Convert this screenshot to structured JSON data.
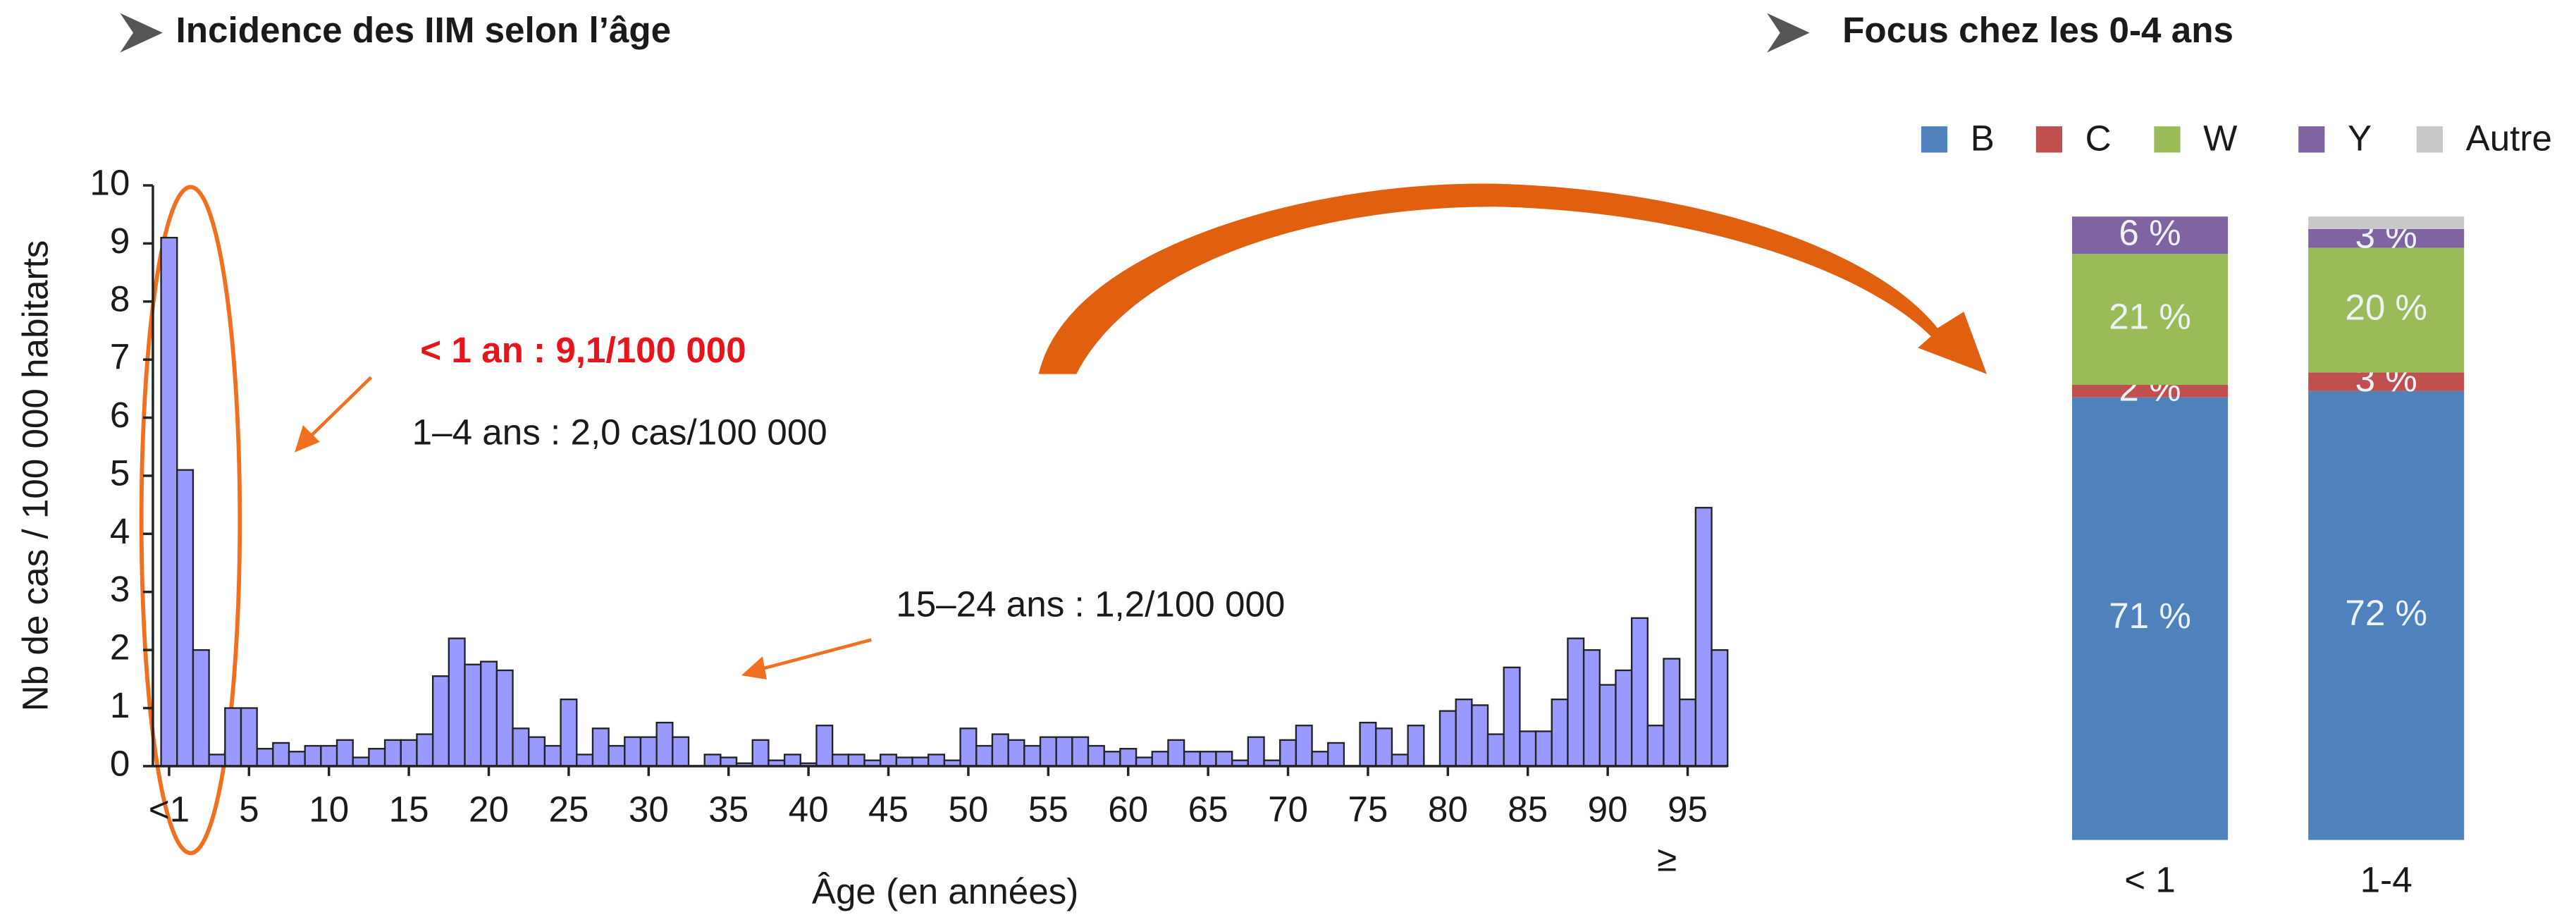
{
  "chart_data": [
    {
      "type": "bar",
      "title": "Incidence des IIM selon l’âge",
      "color": "#9999ff",
      "xlabel": "Âge (en années)",
      "ylabel": "Nb de cas / 100 000 habitarts",
      "categories": [
        "<1",
        null,
        null,
        null,
        null,
        "5",
        null,
        null,
        null,
        null,
        "10",
        null,
        null,
        null,
        null,
        "15",
        null,
        null,
        null,
        null,
        "20",
        null,
        null,
        null,
        null,
        "25",
        null,
        null,
        null,
        null,
        "30",
        null,
        null,
        null,
        null,
        "35",
        null,
        null,
        null,
        null,
        "40",
        null,
        null,
        null,
        null,
        "45",
        null,
        null,
        null,
        null,
        "50",
        null,
        null,
        null,
        null,
        "55",
        null,
        null,
        null,
        null,
        "60",
        null,
        null,
        null,
        null,
        "65",
        null,
        null,
        null,
        null,
        "70",
        null,
        null,
        null,
        null,
        "75",
        null,
        null,
        null,
        null,
        "80",
        null,
        null,
        null,
        null,
        "85",
        null,
        null,
        null,
        null,
        "90",
        null,
        null,
        null,
        null,
        "95",
        null,
        null
      ],
      "values": [
        9.1,
        5.1,
        2.0,
        0.2,
        1.0,
        1.0,
        0.3,
        0.4,
        0.25,
        0.35,
        0.35,
        0.45,
        0.15,
        0.3,
        0.45,
        0.45,
        0.55,
        1.55,
        2.2,
        1.75,
        1.8,
        1.65,
        0.65,
        0.5,
        0.35,
        1.15,
        0.2,
        0.65,
        0.35,
        0.5,
        0.5,
        0.75,
        0.5,
        0,
        0.2,
        0.15,
        0.05,
        0.45,
        0.1,
        0.2,
        0.05,
        0.7,
        0.2,
        0.2,
        0.1,
        0.2,
        0.15,
        0.15,
        0.2,
        0.1,
        0.65,
        0.35,
        0.55,
        0.45,
        0.35,
        0.5,
        0.5,
        0.5,
        0.35,
        0.25,
        0.3,
        0.15,
        0.25,
        0.45,
        0.25,
        0.25,
        0.25,
        0.1,
        0.5,
        0.1,
        0.45,
        0.7,
        0.25,
        0.4,
        0,
        0.75,
        0.65,
        0.2,
        0.7,
        0,
        0.95,
        1.15,
        1.05,
        0.55,
        1.7,
        0.6,
        0.6,
        1.15,
        2.2,
        2.0,
        1.4,
        1.65,
        2.55,
        0.7,
        1.85,
        1.15,
        4.45,
        2.0
      ],
      "ylim": [
        0,
        10
      ],
      "yticks": [
        0,
        1,
        2,
        3,
        4,
        5,
        6,
        7,
        8,
        9,
        10
      ],
      "annotations": [
        "< 1 an : 9,1/100 000",
        "1–4 ans : 2,0 cas/100 000",
        "15–24 ans : 1,2/100 000",
        "≥"
      ]
    },
    {
      "type": "stacked_bar",
      "title": "Focus chez les 0-4 ans",
      "categories": [
        "< 1",
        "1-4"
      ],
      "ylim": [
        0,
        100
      ],
      "series": [
        {
          "name": "B",
          "color": "#4f81bd",
          "values": [
            71,
            72
          ],
          "value_labels": [
            "71 %",
            "72 %"
          ]
        },
        {
          "name": "C",
          "color": "#c0504d",
          "values": [
            2,
            3
          ],
          "value_labels": [
            "2 %",
            "3 %"
          ]
        },
        {
          "name": "W",
          "color": "#9bbb59",
          "values": [
            21,
            20
          ],
          "value_labels": [
            "21 %",
            "20 %"
          ]
        },
        {
          "name": "Y",
          "color": "#8064a2",
          "values": [
            6,
            3
          ],
          "value_labels": [
            "6 %",
            "3 %"
          ]
        },
        {
          "name": "Autre",
          "color": "#c8c8c8",
          "values": [
            0,
            2
          ],
          "value_labels": [
            null,
            null
          ]
        }
      ]
    }
  ]
}
